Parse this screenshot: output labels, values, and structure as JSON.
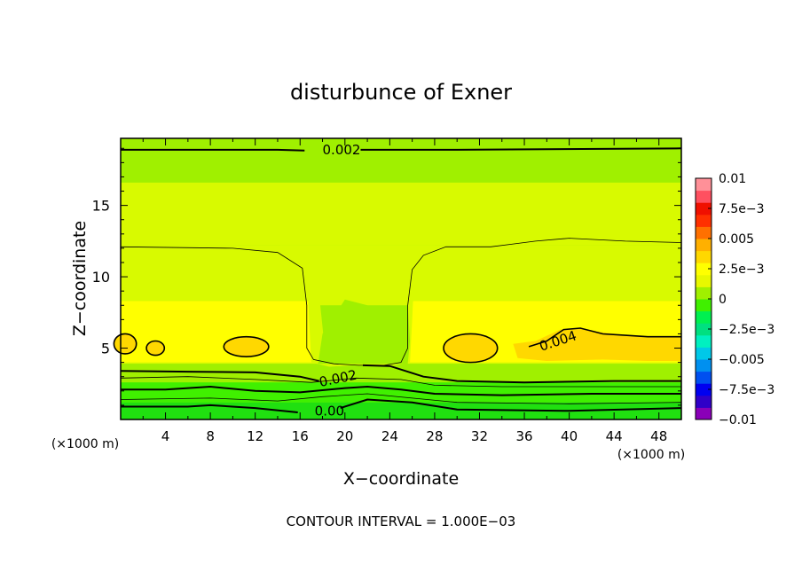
{
  "chart_data": {
    "type": "heatmap",
    "title": "disturbunce of Exner",
    "xlabel": "X−coordinate",
    "ylabel": "Z−coordinate",
    "x_unit_left": "(×1000 m)",
    "x_unit_right": "(×1000 m)",
    "footer": "CONTOUR INTERVAL = 1.000E−03",
    "xlim": [
      0,
      50
    ],
    "ylim": [
      0,
      19.7
    ],
    "x_ticks": [
      4,
      8,
      12,
      16,
      20,
      24,
      28,
      32,
      36,
      40,
      44,
      48
    ],
    "x_tick_labels": [
      "4",
      "8",
      "12",
      "16",
      "20",
      "24",
      "28",
      "32",
      "36",
      "40",
      "44",
      "48"
    ],
    "y_ticks": [
      5,
      10,
      15
    ],
    "y_tick_labels": [
      "5",
      "10",
      "15"
    ],
    "contour_interval": 0.001,
    "contour_labels": [
      {
        "text": "0.002",
        "x": 18,
        "z": 18.9
      },
      {
        "text": "0.002",
        "x": 17.8,
        "z": 2.6
      },
      {
        "text": "0.004",
        "x": 37.5,
        "z": 5.1
      },
      {
        "text": "0.00",
        "x": 17.3,
        "z": 0.6
      }
    ],
    "colorbar": {
      "min": -0.01,
      "max": 0.01,
      "tick_values": [
        0.01,
        0.0075,
        0.005,
        0.0025,
        0,
        -0.0025,
        -0.005,
        -0.0075,
        -0.01
      ],
      "tick_labels": [
        "0.01",
        "7.5e−3",
        "0.005",
        "2.5e−3",
        "0",
        "−2.5e−3",
        "−0.005",
        "−7.5e−3",
        "−0.01"
      ],
      "colors": [
        "#8a00b8",
        "#3000c8",
        "#0000f0",
        "#0050f0",
        "#0090f0",
        "#00c8e8",
        "#00f0c0",
        "#00e080",
        "#00f050",
        "#40f000",
        "#a0f000",
        "#e8f800",
        "#ffff00",
        "#ffd800",
        "#ffb000",
        "#ff7000",
        "#ff3000",
        "#f01000",
        "#ff5060",
        "#ff9098"
      ]
    },
    "field_colors": {
      "level_0": "#20e010",
      "level_1": "#40f000",
      "level_2": "#a0f000",
      "level_3": "#d8fa00",
      "level_4": "#ffff00",
      "level_5": "#ffd800"
    }
  }
}
